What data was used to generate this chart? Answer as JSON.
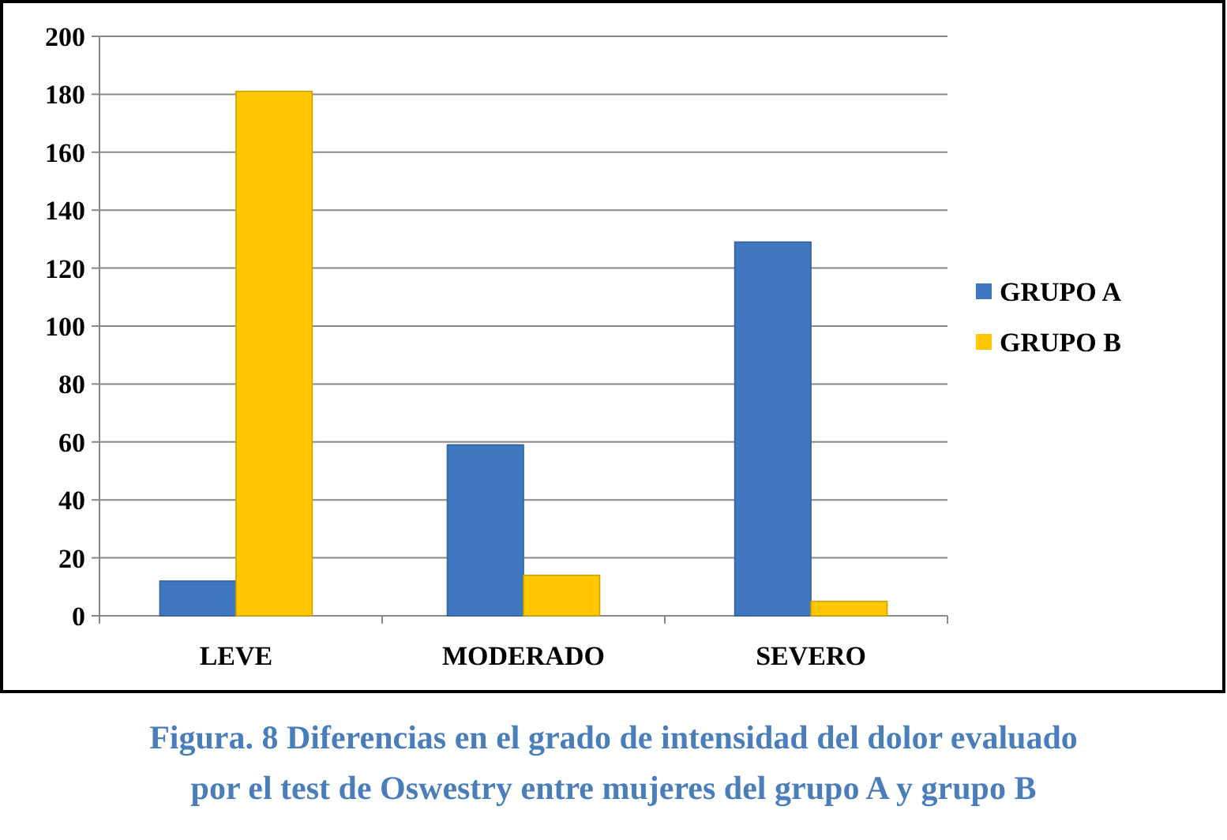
{
  "chart_data": {
    "type": "bar",
    "title": "Figura. 8 Diferencias en el grado de intensidad del dolor evaluado por el test de Oswestry entre mujeres del grupo A y grupo B",
    "categories": [
      "LEVE",
      "MODERADO",
      "SEVERO"
    ],
    "series": [
      {
        "name": "GRUPO A",
        "color": "#3f78c0",
        "values": [
          12,
          59,
          129
        ]
      },
      {
        "name": "GRUPO B",
        "color": "#ffc800",
        "values": [
          181,
          14,
          5
        ]
      }
    ],
    "ylim": [
      0,
      200
    ],
    "yticks": [
      0,
      20,
      40,
      60,
      80,
      100,
      120,
      140,
      160,
      180,
      200
    ],
    "grid": "y",
    "legend": "right"
  }
}
